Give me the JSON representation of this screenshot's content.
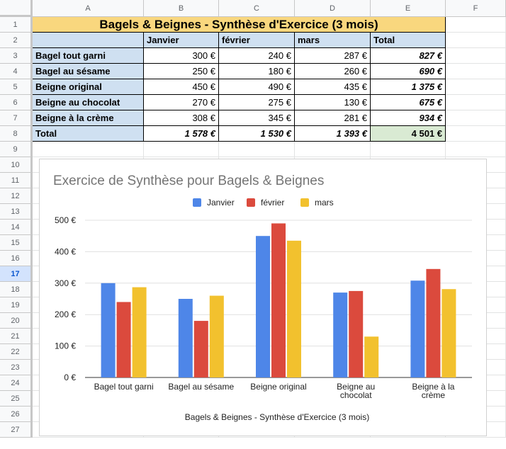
{
  "columns": [
    "A",
    "B",
    "C",
    "D",
    "E",
    "F"
  ],
  "rows": [
    "1",
    "2",
    "3",
    "4",
    "5",
    "6",
    "7",
    "8",
    "9",
    "10",
    "11",
    "12",
    "13",
    "14",
    "15",
    "16",
    "17",
    "18",
    "19",
    "20",
    "21",
    "22",
    "23",
    "24",
    "25",
    "26",
    "27"
  ],
  "selected_row": "17",
  "table": {
    "title": "Bagels & Beignes - Synthèse d'Exercice (3 mois)",
    "headers": [
      "",
      "Janvier",
      "février",
      "mars",
      "Total"
    ],
    "body": [
      [
        "Bagel tout garni",
        "300 €",
        "240 €",
        "287 €",
        "827 €"
      ],
      [
        "Bagel au sésame",
        "250 €",
        "180 €",
        "260 €",
        "690 €"
      ],
      [
        "Beigne original",
        "450 €",
        "490 €",
        "435 €",
        "1 375 €"
      ],
      [
        "Beigne au chocolat",
        "270 €",
        "275 €",
        "130 €",
        "675 €"
      ],
      [
        "Beigne à la crème",
        "308 €",
        "345 €",
        "281 €",
        "934 €"
      ]
    ],
    "total_row": [
      "Total",
      "1 578 €",
      "1 530 €",
      "1 393 €",
      "4 501 €"
    ]
  },
  "colors": {
    "title_bg": "#f9d77e",
    "header_bg": "#cfe0f1",
    "grand_total_bg": "#d9ead3",
    "series": [
      "#4e86e8",
      "#db4a3d",
      "#f2c12e"
    ]
  },
  "chart_data": {
    "type": "bar",
    "title": "Exercice de Synthèse  pour Bagels & Beignes",
    "xlabel": "Bagels & Beignes - Synthèse d'Exercice (3 mois)",
    "ylabel": "",
    "categories": [
      "Bagel tout garni",
      "Bagel au sésame",
      "Beigne original",
      "Beigne au chocolat",
      "Beigne à la crème"
    ],
    "category_lines": [
      [
        "Bagel tout garni"
      ],
      [
        "Bagel au sésame"
      ],
      [
        "Beigne original"
      ],
      [
        "Beigne au",
        "chocolat"
      ],
      [
        "Beigne à la",
        "crème"
      ]
    ],
    "series": [
      {
        "name": "Janvier",
        "values": [
          300,
          250,
          450,
          270,
          308
        ]
      },
      {
        "name": "février",
        "values": [
          240,
          180,
          490,
          275,
          345
        ]
      },
      {
        "name": "mars",
        "values": [
          287,
          260,
          435,
          130,
          281
        ]
      }
    ],
    "ylim": [
      0,
      500
    ],
    "yticks": [
      0,
      100,
      200,
      300,
      400,
      500
    ],
    "ytick_labels": [
      "0 €",
      "100 €",
      "200 €",
      "300 €",
      "400 €",
      "500 €"
    ],
    "legend": "top",
    "grid": true
  }
}
